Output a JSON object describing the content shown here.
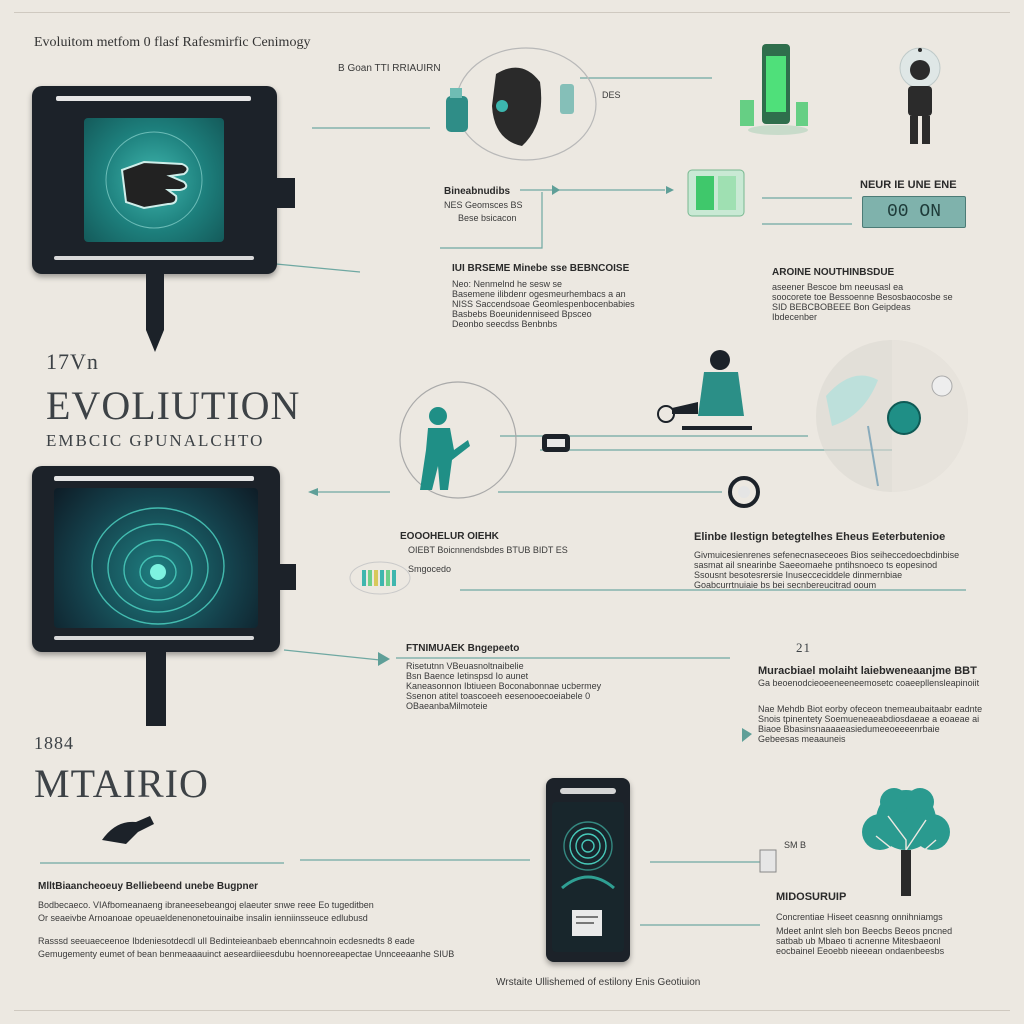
{
  "header": {
    "title": "Evoluitom metfom 0 flasf Rafesmirfic Cenimogy",
    "subtitle": "B Goan TTI RRIAUIRN"
  },
  "labels": {
    "des": "DES",
    "badge_label": "NEUR IE UNE ENE",
    "badge_value": "00 ON",
    "y1": "17Vn",
    "evolution": "EVOLIUTION",
    "evolution_sub": "EMBCIC GPUNALCHTO",
    "y2": "1884",
    "mtairio": "MTAIRIO",
    "n21": "21",
    "sm": "SM B",
    "bottom_caption": "Wrstaite Ullishemed of estilony Enis Geotiuion"
  },
  "blocks": {
    "b1": {
      "head": "Bineabnudibs",
      "lines": [
        "NES Geomsces BS",
        "Bese bsicacon"
      ]
    },
    "b2": {
      "head": "IUI BRSEME Minebe sse BEBNCOISE",
      "lines": [
        "Neo: Nenmelnd he sesw se",
        "Basemene ilibdenr ogesmeurhembacs a an",
        "NISS Saccendsoae Geomlespenbocenbabies",
        "Basbebs Boeunidenniseed Bpsceo",
        "Deonbo seecdss Benbnbs"
      ]
    },
    "b3": {
      "head": "AROINE NOUTHINBSDUE",
      "lines": [
        "aseener Bescoe bm neeusasl ea",
        "soocorete toe Bessoenne Besosbaocosbe se",
        "SID BEBCBOBEEE Bon Geipdeas",
        "Ibdecenber"
      ]
    },
    "b4": {
      "head": "EOOOHELUR OIEHK",
      "lines": [
        "OIEBT Boicnnendsbdes BTUB BIDT ES"
      ]
    },
    "b4b": {
      "head": "Smgocedo",
      "lines": []
    },
    "b5": {
      "head": "Elinbe Ilestign betegtelhes Eheus Eeterbutenioe",
      "lines": [
        "Givmuicesienrenes sefenecnaseceoes Bios seiheccedoecbdinbise",
        "sasmat ail snearinbe Saeeomaehe pntihsnoeco ts eopesinod",
        "Ssousnt besotesrersie Inusecceciddele dinmernbiae",
        "Goabcurrtnuiaie bs bei secnbereucitrad ooum"
      ]
    },
    "b6": {
      "head": "FTNIMUAEK Bngepeeto",
      "lines": [
        "Risetutnn VBeuasnoltnaibelie",
        "Bsn Baence Ietinspsd Io aunet",
        "Kaneasonnon Ibtiueen Boconabonnae ucbermey",
        "Ssenon atitel toascoeeh eesenooecoeiabele 0",
        "OBaeanbaMilmoteie"
      ]
    },
    "b7": {
      "head": "Muracbiael molaiht laiebweneaanjme BBT",
      "lines": [
        "Ga beoenodcieoeeneeneemosetc coaeepllensleapinoiit",
        "Nae Mehdb Biot eorby ofeceon tnemeaubaitaabr eadnte",
        "Snois tpinentety Soemueneaeabdiosdaeae a eoaeae ai",
        "Biaoe Bbasinsnaaaaeasiedumeeoeeeenrbaie",
        "Gebeesas meaauneis"
      ]
    },
    "b8": {
      "head": "MlltBiaancheoeuy Belliebeend unebe Bugpner",
      "lines": [
        "Bodbecaeco. VIAfbomeanaeng ibraneesebeangoj elaeuter snwe reee Eo tugeditben",
        "Or seaeivbe Arnoanoae opeuaeldenenonetouinaibe insalin ienniinsseuce edlubusd"
      ]
    },
    "b9": {
      "head": "",
      "lines": [
        "Rasssd seeuaeceenoe Ibdeniesotdecdl ulI Bedinteieanbaeb ebenncahnoin ecdesnedts 8 eade",
        "Gemugementy eumet of bean benmeaaauinct aeseardiieesdubu hoennoreeapectae Unnceeaanhe SIUB"
      ]
    },
    "b10": {
      "head": "MIDOSURUIP",
      "lines": [
        "Concrentiae Hiseet ceasnng onnihniamgs",
        "Mdeet anlnt sleh bon Beecbs Beeos pncned",
        "satbab ub Mbaeo ti acnenne Mitesbaeonl",
        "eocbainel Eeoebb nieeean ondaenbeesbs"
      ]
    }
  }
}
